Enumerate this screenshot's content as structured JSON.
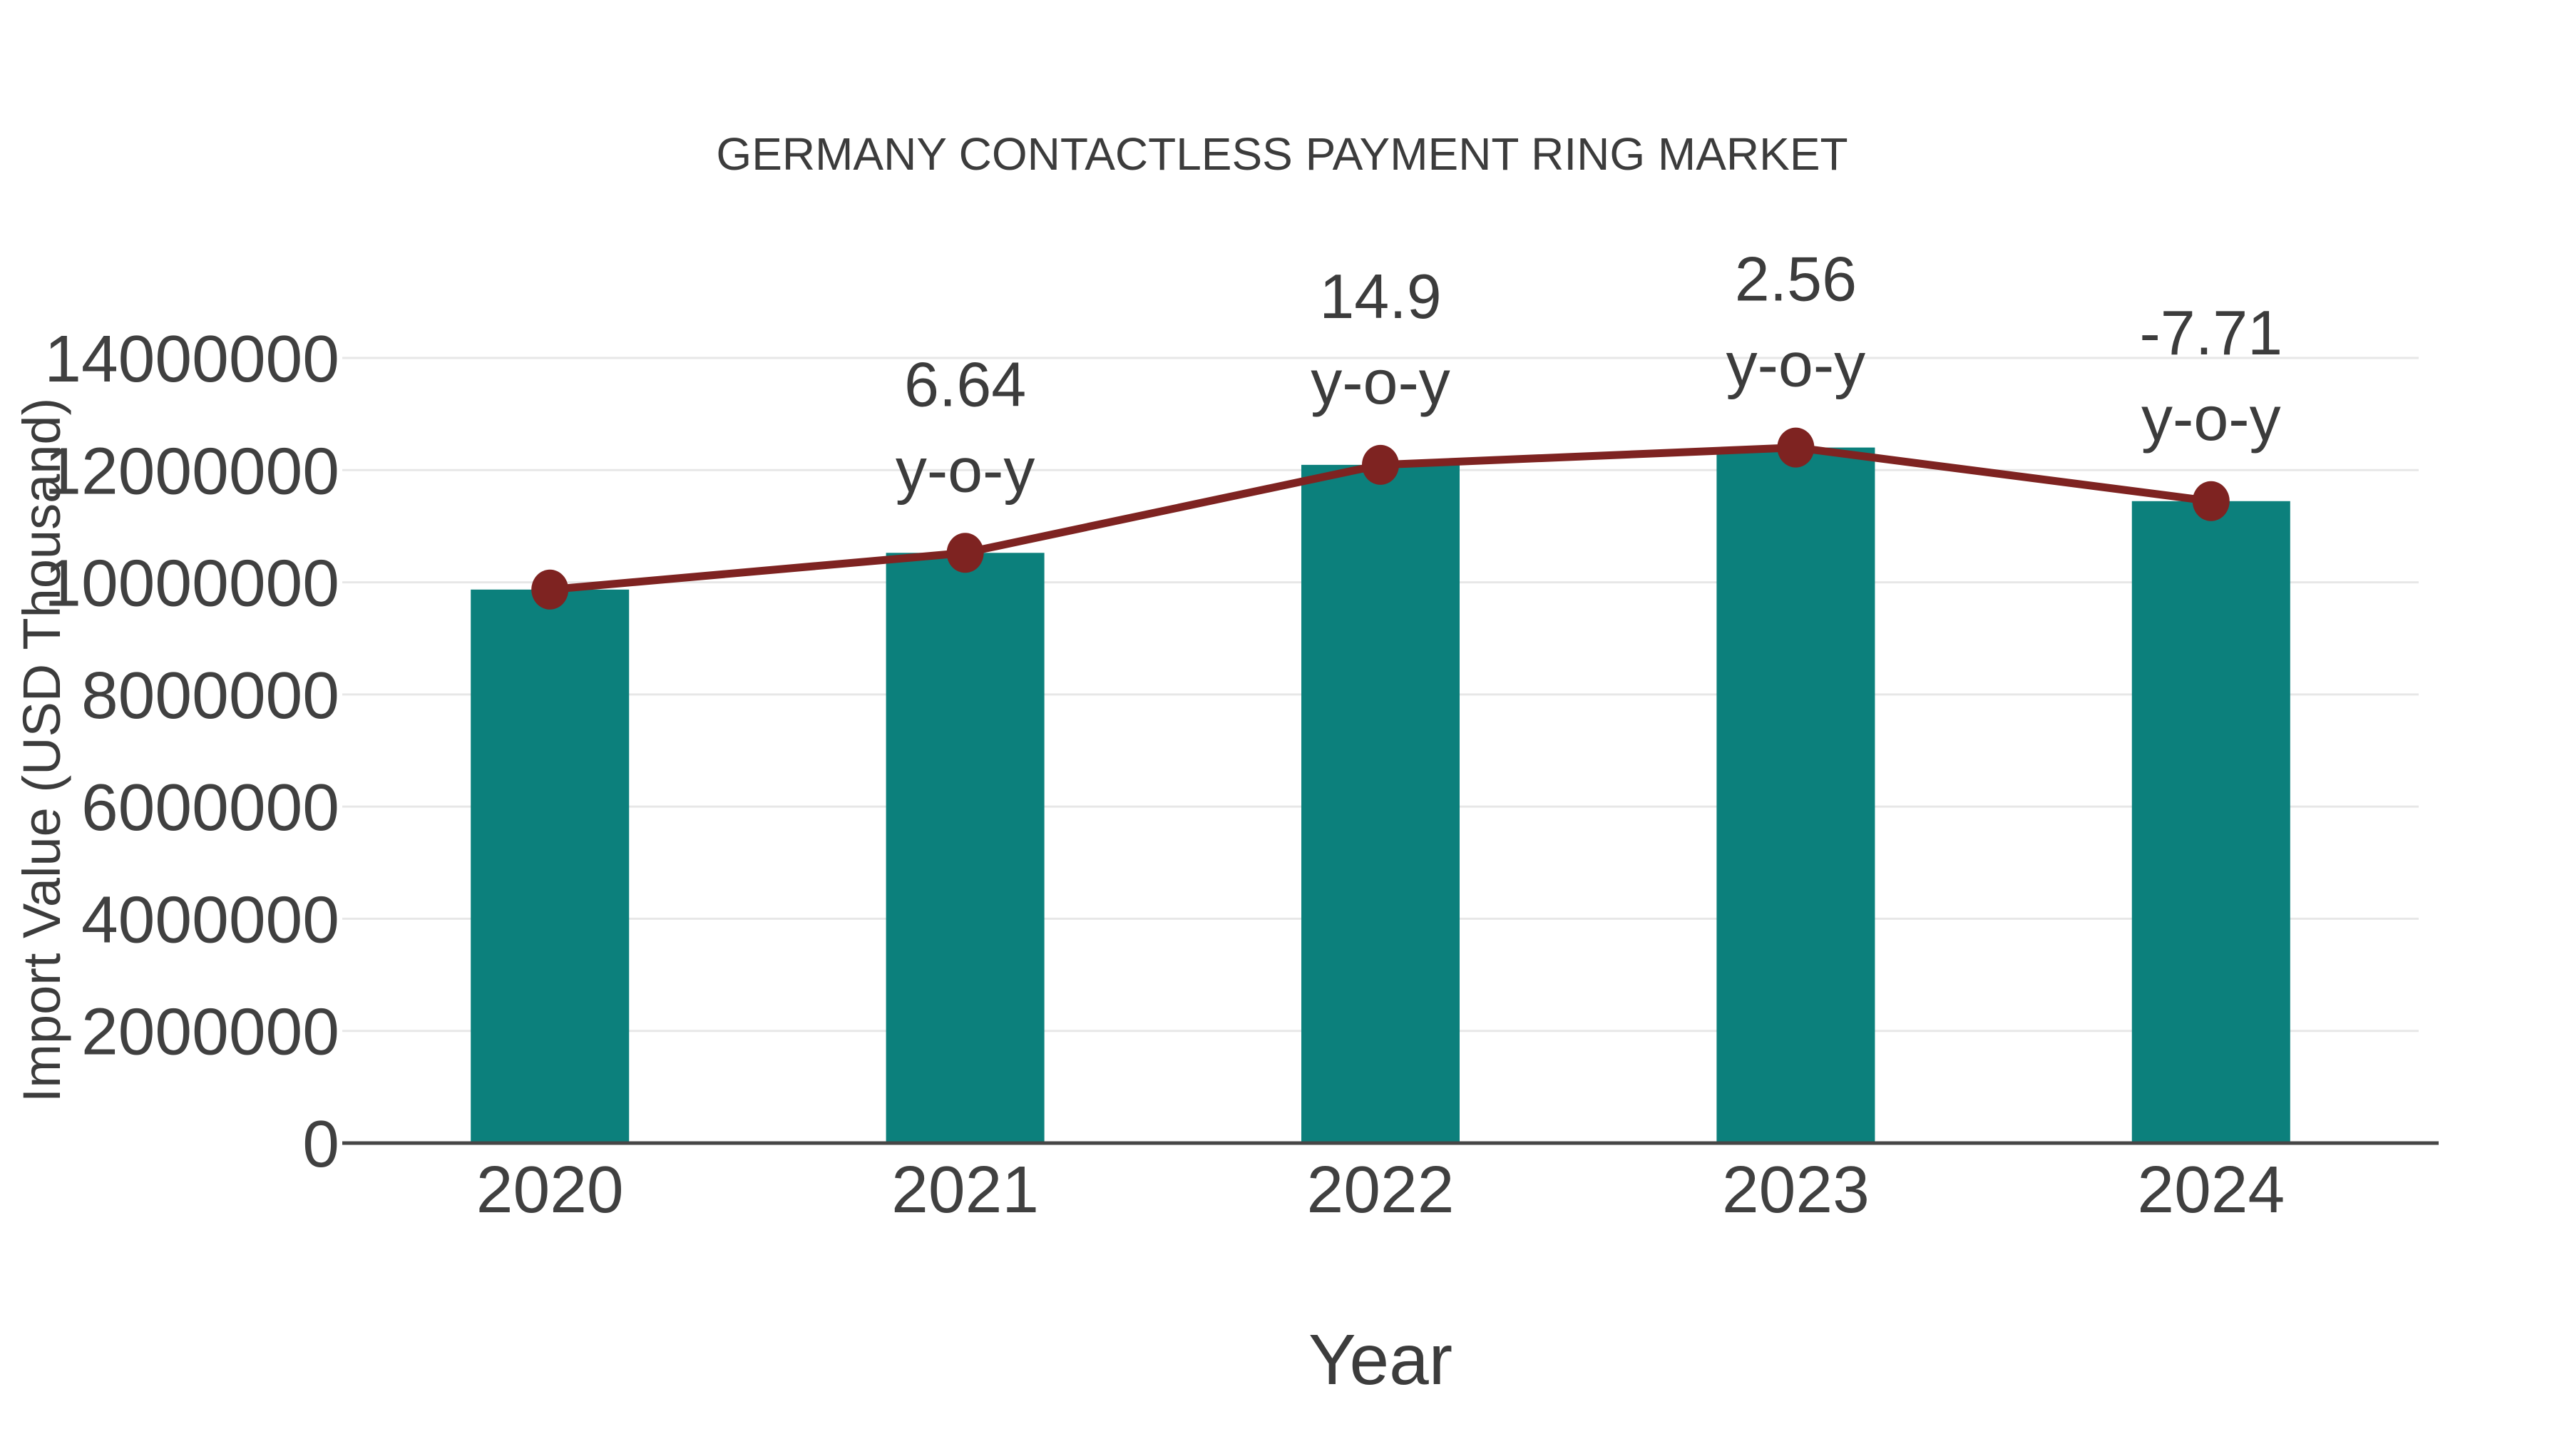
{
  "title": "GERMANY CONTACTLESS PAYMENT RING MARKET",
  "chart_data": {
    "type": "bar",
    "title": "GERMANY CONTACTLESS PAYMENT RING MARKET",
    "xlabel": "Year",
    "ylabel": "Import Value (USD Thousand)",
    "categories": [
      "2020",
      "2021",
      "2022",
      "2023",
      "2024"
    ],
    "series": [
      {
        "name": "Import Value (USD Thousand)",
        "type": "bar",
        "color": "#0c807c",
        "values": [
          9870000,
          10525000,
          12094000,
          12403000,
          11447000
        ]
      },
      {
        "name": "y-o-y trend",
        "type": "line",
        "color": "#7e2321",
        "values": [
          9870000,
          10525000,
          12094000,
          12403000,
          11447000
        ]
      }
    ],
    "annotations": [
      {
        "category": "2021",
        "value": "6.64",
        "label": "y-o-y"
      },
      {
        "category": "2022",
        "value": "14.9",
        "label": "y-o-y"
      },
      {
        "category": "2023",
        "value": "2.56",
        "label": "y-o-y"
      },
      {
        "category": "2024",
        "value": "-7.71",
        "label": "y-o-y"
      }
    ],
    "yoy_percent": [
      null,
      6.64,
      14.9,
      2.56,
      -7.71
    ],
    "ylim": [
      0,
      14000000
    ],
    "yticks": [
      {
        "v": 0,
        "label": "0"
      },
      {
        "v": 2000000,
        "label": "2000000"
      },
      {
        "v": 4000000,
        "label": "4000000"
      },
      {
        "v": 6000000,
        "label": "6000000"
      },
      {
        "v": 8000000,
        "label": "8000000"
      },
      {
        "v": 10000000,
        "label": "10000000"
      },
      {
        "v": 12000000,
        "label": "12000000"
      },
      {
        "v": 14000000,
        "label": "14000000"
      }
    ],
    "grid": true,
    "legend": false,
    "colors": {
      "bar": "#0c807c",
      "line": "#7e2321",
      "marker": "#7e2321",
      "gridline": "#e7e7e7",
      "axisline": "#464646",
      "text": "#3e3e3e",
      "background": "#ffffff"
    }
  }
}
